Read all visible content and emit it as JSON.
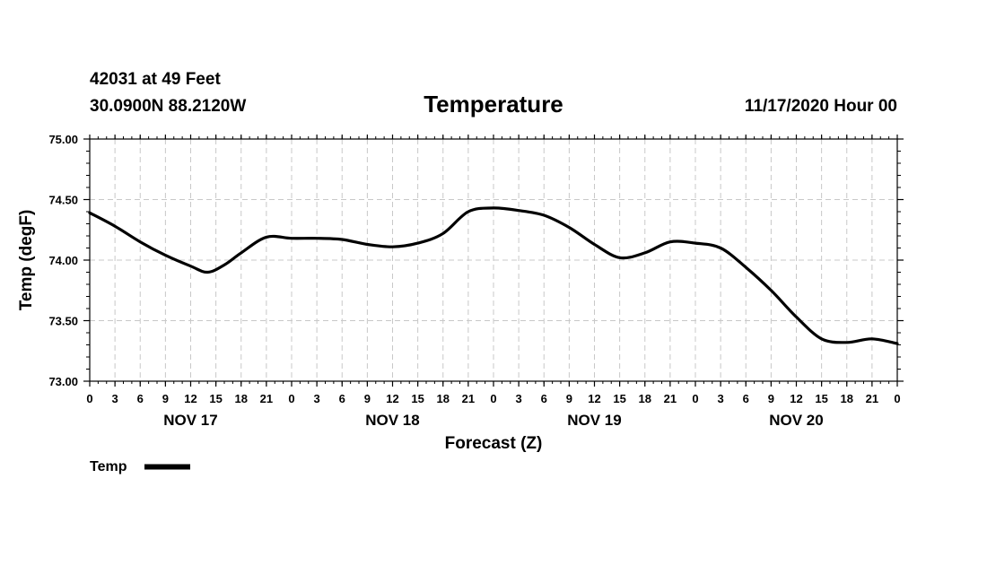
{
  "header": {
    "station": "42031 at 49 Feet",
    "coords": "30.0900N 88.2120W",
    "title": "Temperature",
    "run": "11/17/2020 Hour 00"
  },
  "legend": {
    "label": "Temp",
    "color": "#000000"
  },
  "chart_data": {
    "type": "line",
    "title": "Temperature",
    "xlabel": "Forecast (Z)",
    "ylabel": "Temp (degF)",
    "ylim": [
      73.0,
      75.0
    ],
    "yticks": [
      "73.00",
      "73.50",
      "74.00",
      "74.50",
      "75.00"
    ],
    "y_tick_values": [
      73.0,
      73.5,
      74.0,
      74.5,
      75.0
    ],
    "xlim": [
      0,
      96
    ],
    "x_tick_labels": [
      "0",
      "3",
      "6",
      "9",
      "12",
      "15",
      "18",
      "21",
      "0",
      "3",
      "6",
      "9",
      "12",
      "15",
      "18",
      "21",
      "0",
      "3",
      "6",
      "9",
      "12",
      "15",
      "18",
      "21",
      "0",
      "3",
      "6",
      "9",
      "12",
      "15",
      "18",
      "21",
      "0"
    ],
    "x_tick_hours": [
      0,
      3,
      6,
      9,
      12,
      15,
      18,
      21,
      24,
      27,
      30,
      33,
      36,
      39,
      42,
      45,
      48,
      51,
      54,
      57,
      60,
      63,
      66,
      69,
      72,
      75,
      78,
      81,
      84,
      87,
      90,
      93,
      96
    ],
    "day_labels": [
      {
        "text": "NOV 17",
        "hour": 12
      },
      {
        "text": "NOV 18",
        "hour": 36
      },
      {
        "text": "NOV 19",
        "hour": 60
      },
      {
        "text": "NOV 20",
        "hour": 84
      }
    ],
    "grid": true,
    "series": [
      {
        "name": "Temp",
        "x": [
          0,
          3,
          6,
          9,
          12,
          14,
          16,
          18,
          21,
          24,
          27,
          30,
          33,
          36,
          39,
          42,
          45,
          48,
          51,
          54,
          57,
          60,
          63,
          66,
          69,
          72,
          75,
          78,
          81,
          84,
          87,
          90,
          93,
          96
        ],
        "values": [
          74.39,
          74.28,
          74.15,
          74.04,
          73.95,
          73.9,
          73.96,
          74.06,
          74.19,
          74.18,
          74.18,
          74.17,
          74.13,
          74.11,
          74.14,
          74.22,
          74.4,
          74.43,
          74.41,
          74.37,
          74.27,
          74.13,
          74.02,
          74.06,
          74.15,
          74.14,
          74.1,
          73.94,
          73.75,
          73.53,
          73.35,
          73.32,
          73.35,
          73.31
        ]
      }
    ]
  }
}
